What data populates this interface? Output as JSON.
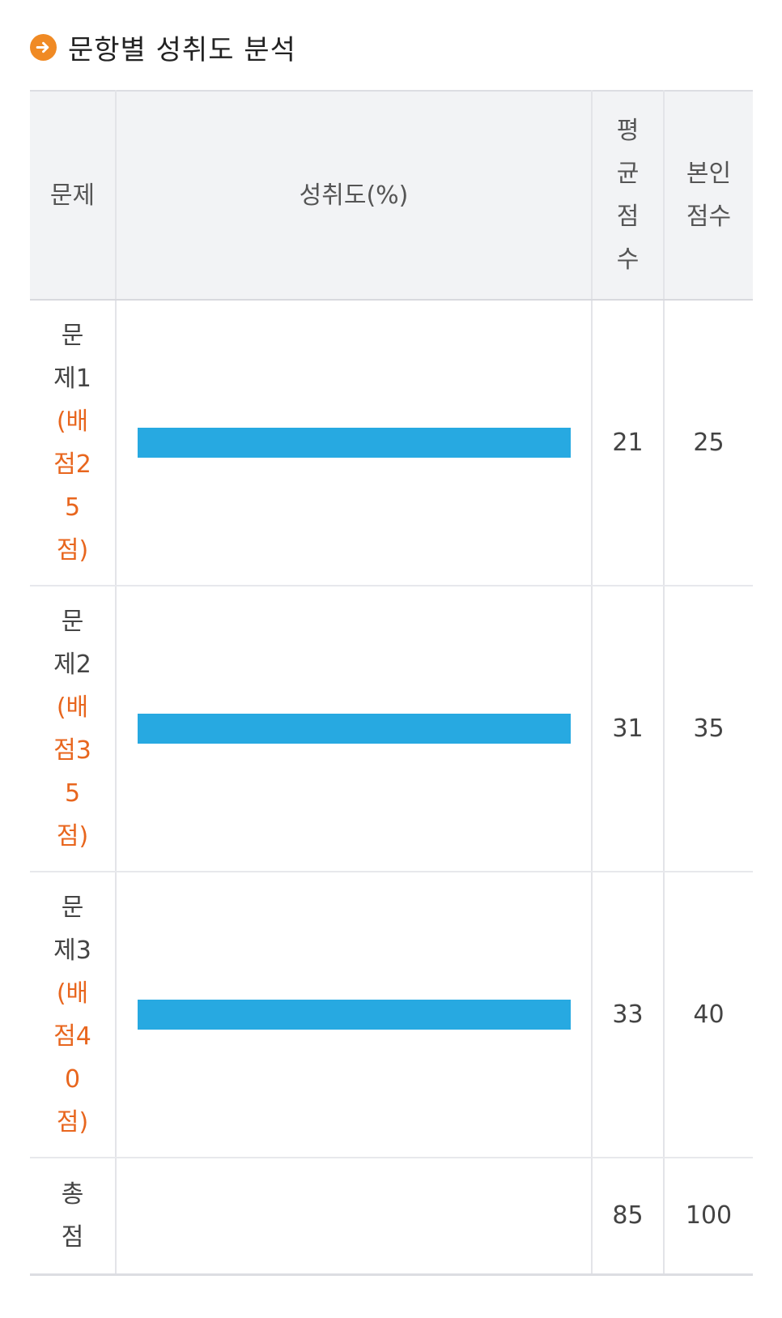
{
  "section": {
    "title": "문항별 성취도 분석",
    "icon": "arrow-right-circle-icon",
    "icon_color": "#f08a24"
  },
  "table": {
    "headers": {
      "question": "문제",
      "achievement": "성취도(%)",
      "average": "평균점수",
      "my_score": "본인점수"
    },
    "rows": [
      {
        "name": "문제1",
        "points": "(배점25점)",
        "achievement": 1.0,
        "average": "21",
        "my_score": "25"
      },
      {
        "name": "문제2",
        "points": "(배점35점)",
        "achievement": 1.0,
        "average": "31",
        "my_score": "35"
      },
      {
        "name": "문제3",
        "points": "(배점40점)",
        "achievement": 1.0,
        "average": "33",
        "my_score": "40"
      }
    ],
    "total": {
      "label": "총점",
      "average": "85",
      "my_score": "100"
    }
  },
  "colors": {
    "bar": "#27a9e1",
    "points_text": "#e8661e",
    "header_bg": "#f2f3f5"
  }
}
